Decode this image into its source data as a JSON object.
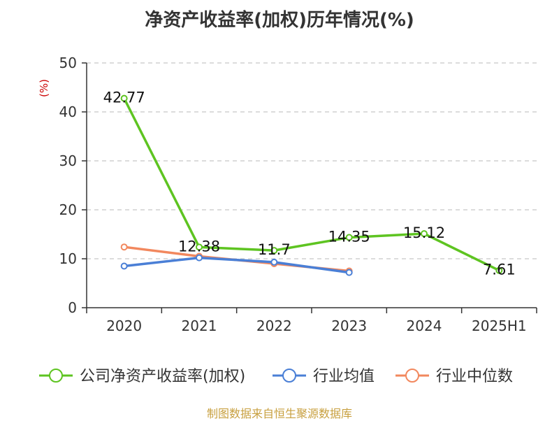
{
  "chart_data": {
    "type": "line",
    "title": "净资产收益率(加权)历年情况(%)",
    "ylabel": "(%)",
    "xlabel": "",
    "categories": [
      "2020",
      "2021",
      "2022",
      "2023",
      "2024",
      "2025H1"
    ],
    "ylim": [
      0,
      50
    ],
    "yticks": [
      0,
      10,
      20,
      30,
      40,
      50
    ],
    "grid": true,
    "legend_position": "bottom",
    "series": [
      {
        "name": "公司净资产收益率(加权)",
        "color": "#5ec421",
        "values": [
          42.77,
          12.38,
          11.7,
          14.35,
          15.12,
          7.61
        ],
        "labels": [
          "42.77",
          "12.38",
          "11.7",
          "14.35",
          "15.12",
          "7.61"
        ]
      },
      {
        "name": "行业均值",
        "color": "#4a7fd6",
        "values": [
          8.5,
          10.2,
          9.3,
          7.2,
          null,
          null
        ]
      },
      {
        "name": "行业中位数",
        "color": "#f2885e",
        "values": [
          12.4,
          10.5,
          9.0,
          7.5,
          null,
          null
        ]
      }
    ]
  },
  "source": "制图数据来自恒生聚源数据库"
}
